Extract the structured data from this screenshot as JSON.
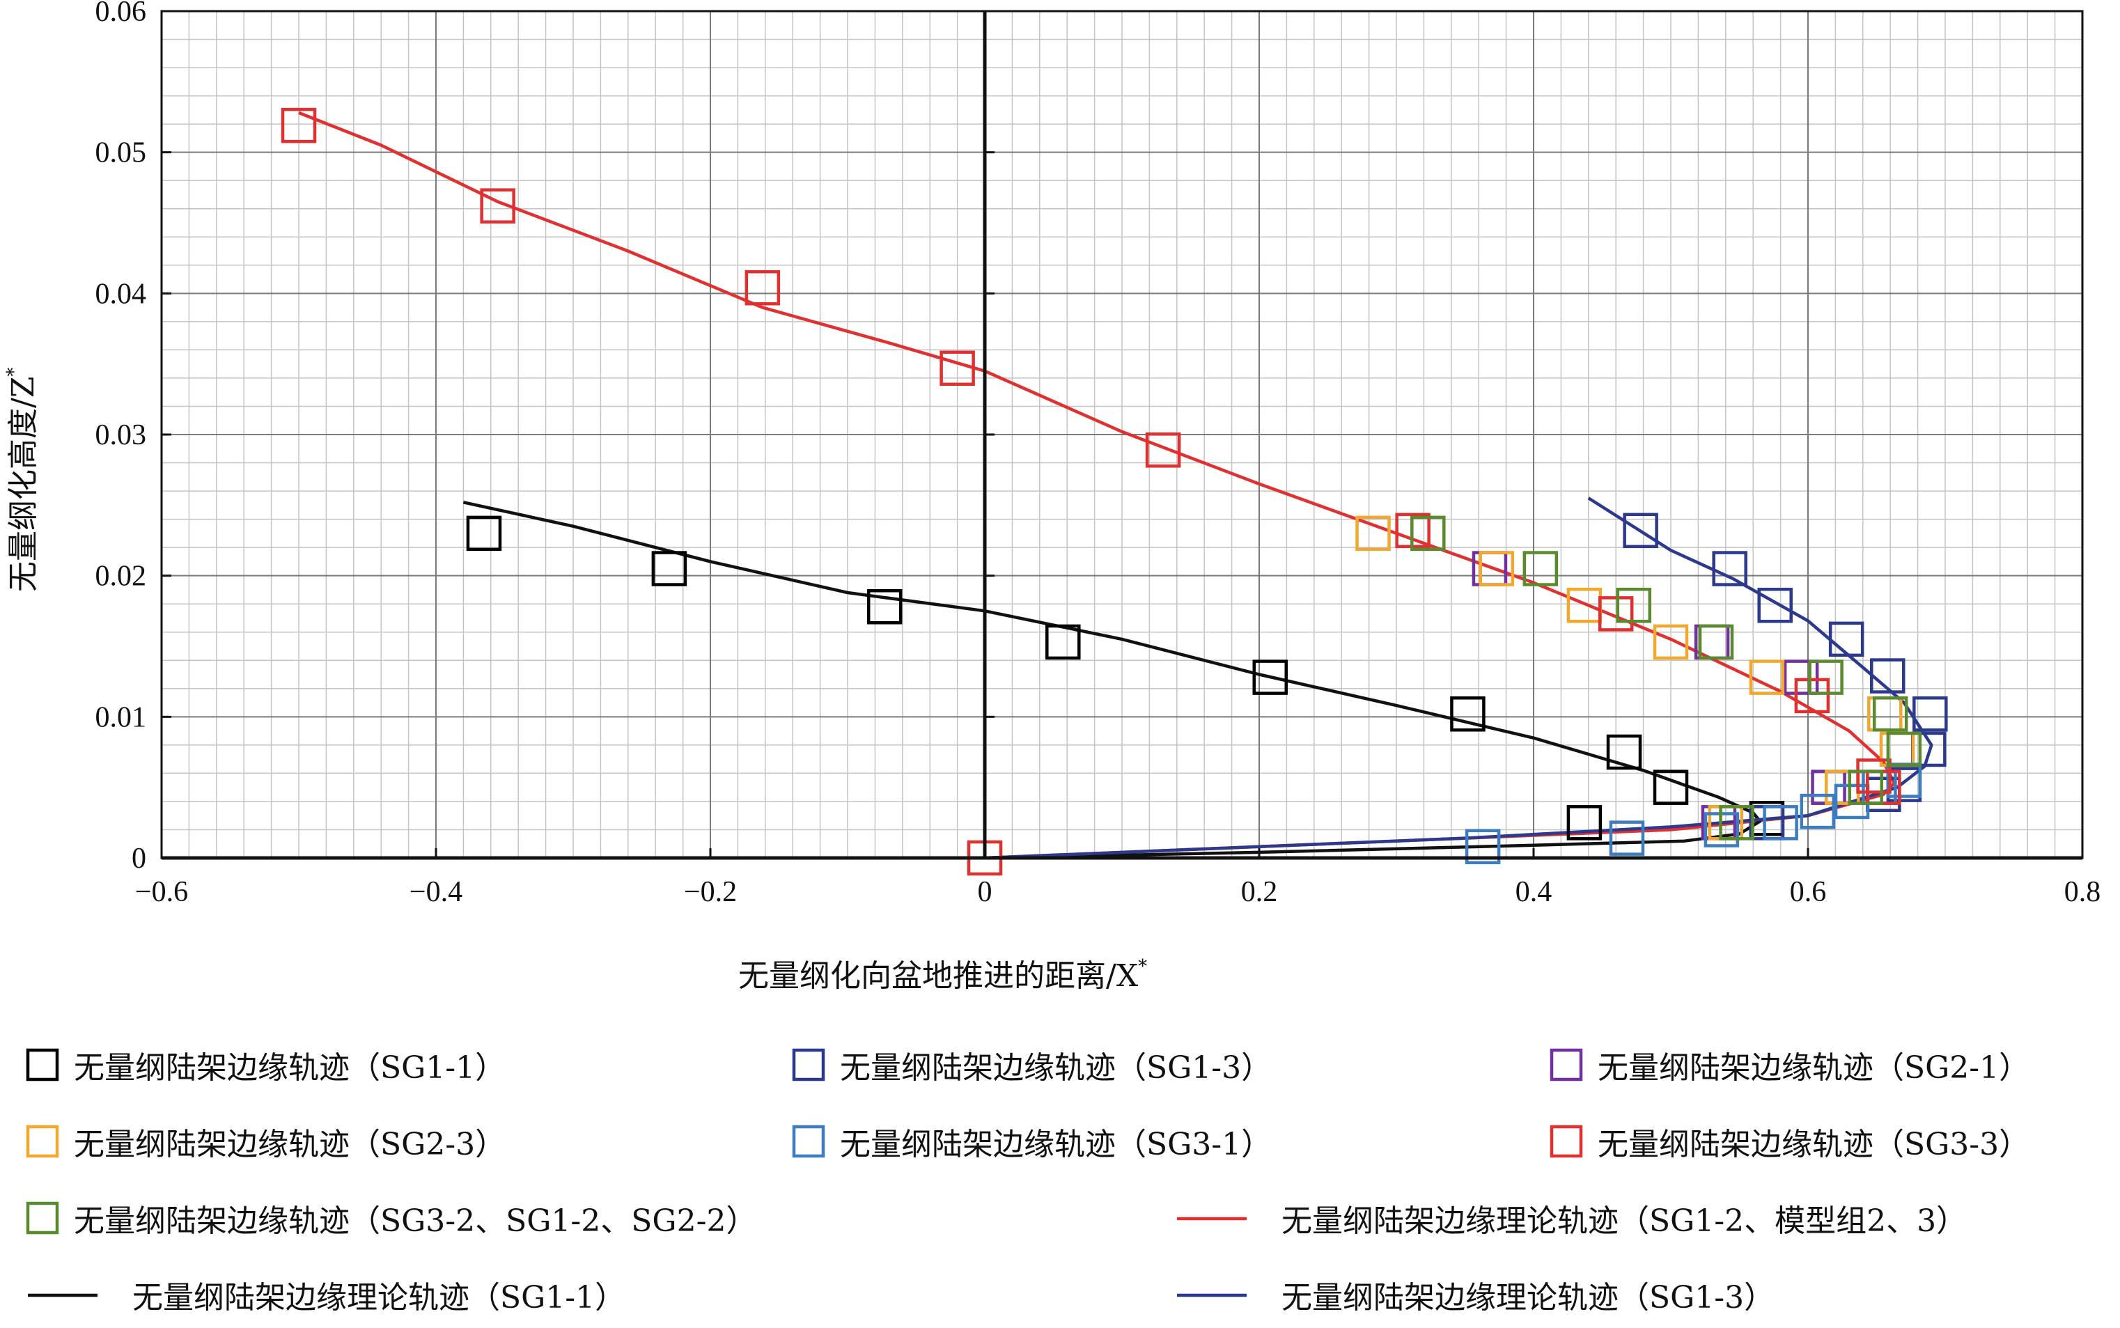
{
  "chart_data": {
    "type": "scatter",
    "xlabel": "无量纲化向盆地推进的距离/X",
    "xlabel_sup": "*",
    "ylabel": "无量纲化高度/Z",
    "ylabel_sup": "*",
    "xlim": [
      -0.6,
      0.8
    ],
    "ylim": [
      0,
      0.06
    ],
    "x_major_ticks": [
      -0.6,
      -0.4,
      -0.2,
      0,
      0.2,
      0.4,
      0.6,
      0.8
    ],
    "x_tick_labels": [
      "−0.6",
      "−0.4",
      "−0.2",
      "0",
      "0.2",
      "0.4",
      "0.6",
      "0.8"
    ],
    "y_major_ticks": [
      0,
      0.01,
      0.02,
      0.03,
      0.04,
      0.05,
      0.06
    ],
    "y_tick_labels": [
      "0",
      "0.01",
      "0.02",
      "0.03",
      "0.04",
      "0.05",
      "0.06"
    ],
    "x_minor_step": 0.02,
    "y_minor_step": 0.002,
    "grid": true,
    "legend_position": "bottom",
    "series": [
      {
        "name": "无量纲陆架边缘轨迹（SG1-1）",
        "kind": "marker",
        "color": "#000000",
        "points": [
          [
            -0.365,
            0.023
          ],
          [
            -0.23,
            0.0205
          ],
          [
            -0.073,
            0.0178
          ],
          [
            0.057,
            0.0153
          ],
          [
            0.208,
            0.0128
          ],
          [
            0.352,
            0.0102
          ],
          [
            0.466,
            0.0075
          ],
          [
            0.5,
            0.005
          ],
          [
            0.437,
            0.0025
          ],
          [
            0.57,
            0.0028
          ]
        ]
      },
      {
        "name": "无量纲陆架边缘轨迹（SG1-3）",
        "kind": "marker",
        "color": "#2b3a8c",
        "points": [
          [
            0.478,
            0.0232
          ],
          [
            0.543,
            0.0205
          ],
          [
            0.576,
            0.0179
          ],
          [
            0.628,
            0.0155
          ],
          [
            0.658,
            0.0129
          ],
          [
            0.689,
            0.0102
          ],
          [
            0.688,
            0.0077
          ],
          [
            0.67,
            0.0052
          ],
          [
            0.655,
            0.0045
          ],
          [
            0.57,
            0.0025
          ]
        ]
      },
      {
        "name": "无量纲陆架边缘轨迹（SG2-1）",
        "kind": "marker",
        "color": "#7030a0",
        "points": [
          [
            0.368,
            0.0205
          ],
          [
            0.53,
            0.0153
          ],
          [
            0.595,
            0.0128
          ],
          [
            0.615,
            0.005
          ],
          [
            0.535,
            0.0025
          ]
        ]
      },
      {
        "name": "无量纲陆架边缘轨迹（SG2-3）",
        "kind": "marker",
        "color": "#f0a830",
        "points": [
          [
            0.283,
            0.023
          ],
          [
            0.373,
            0.0205
          ],
          [
            0.437,
            0.0179
          ],
          [
            0.5,
            0.0153
          ],
          [
            0.57,
            0.0128
          ],
          [
            0.656,
            0.0102
          ],
          [
            0.665,
            0.0077
          ],
          [
            0.625,
            0.005
          ],
          [
            0.54,
            0.0025
          ]
        ]
      },
      {
        "name": "无量纲陆架边缘轨迹（SG3-1）",
        "kind": "marker",
        "color": "#3d7cc0",
        "points": [
          [
            0.363,
            0.0008
          ],
          [
            0.468,
            0.0014
          ],
          [
            0.537,
            0.002
          ],
          [
            0.58,
            0.0025
          ],
          [
            0.607,
            0.0033
          ],
          [
            0.632,
            0.004
          ],
          [
            0.652,
            0.005
          ],
          [
            0.67,
            0.0055
          ]
        ]
      },
      {
        "name": "无量纲陆架边缘轨迹（SG3-3）",
        "kind": "marker",
        "color": "#e03030",
        "points": [
          [
            -0.5,
            0.0519
          ],
          [
            -0.355,
            0.0462
          ],
          [
            -0.162,
            0.0404
          ],
          [
            -0.02,
            0.0347
          ],
          [
            0.13,
            0.0289
          ],
          [
            0.312,
            0.0232
          ],
          [
            0.46,
            0.0173
          ],
          [
            0.603,
            0.0115
          ],
          [
            0.648,
            0.0058
          ],
          [
            0.655,
            0.005
          ],
          [
            0.0,
            0.0
          ]
        ]
      },
      {
        "name": "无量纲陆架边缘轨迹（SG3-2、SG1-2、SG2-2）",
        "kind": "marker",
        "color": "#5a8a2e",
        "points": [
          [
            0.323,
            0.023
          ],
          [
            0.405,
            0.0205
          ],
          [
            0.473,
            0.0179
          ],
          [
            0.533,
            0.0153
          ],
          [
            0.613,
            0.0128
          ],
          [
            0.66,
            0.0102
          ],
          [
            0.67,
            0.0077
          ],
          [
            0.642,
            0.005
          ],
          [
            0.548,
            0.0025
          ]
        ]
      },
      {
        "name": "无量纲陆架边缘理论轨迹（SG1-2、模型组2、3）",
        "kind": "line",
        "color": "#e03030",
        "points": [
          [
            -0.5,
            0.0528
          ],
          [
            -0.44,
            0.0505
          ],
          [
            -0.355,
            0.0465
          ],
          [
            -0.26,
            0.043
          ],
          [
            -0.162,
            0.039
          ],
          [
            -0.07,
            0.0365
          ],
          [
            0.0,
            0.0345
          ],
          [
            0.1,
            0.0302
          ],
          [
            0.2,
            0.0265
          ],
          [
            0.3,
            0.023
          ],
          [
            0.4,
            0.0195
          ],
          [
            0.5,
            0.0155
          ],
          [
            0.58,
            0.0118
          ],
          [
            0.63,
            0.009
          ],
          [
            0.655,
            0.0068
          ],
          [
            0.663,
            0.0053
          ],
          [
            0.655,
            0.0045
          ],
          [
            0.6,
            0.003
          ],
          [
            0.5,
            0.002
          ],
          [
            0.3,
            0.0012
          ],
          [
            0.15,
            0.0006
          ],
          [
            0.0,
            0.0
          ]
        ]
      },
      {
        "name": "无量纲陆架边缘理论轨迹（SG1-1）",
        "kind": "line",
        "color": "#111111",
        "points": [
          [
            -0.38,
            0.0252
          ],
          [
            -0.3,
            0.0235
          ],
          [
            -0.2,
            0.021
          ],
          [
            -0.1,
            0.0188
          ],
          [
            0.0,
            0.0175
          ],
          [
            0.1,
            0.0155
          ],
          [
            0.2,
            0.013
          ],
          [
            0.3,
            0.0108
          ],
          [
            0.4,
            0.0085
          ],
          [
            0.48,
            0.0062
          ],
          [
            0.535,
            0.0043
          ],
          [
            0.56,
            0.0032
          ],
          [
            0.565,
            0.0026
          ],
          [
            0.55,
            0.0017
          ],
          [
            0.51,
            0.0012
          ],
          [
            0.4,
            0.0009
          ],
          [
            0.2,
            0.0004
          ],
          [
            0.0,
            0.0
          ]
        ]
      },
      {
        "name": "无量纲陆架边缘理论轨迹（SG1-3）",
        "kind": "line",
        "color": "#2b3a8c",
        "points": [
          [
            0.44,
            0.0255
          ],
          [
            0.5,
            0.0218
          ],
          [
            0.545,
            0.0198
          ],
          [
            0.6,
            0.0168
          ],
          [
            0.64,
            0.0135
          ],
          [
            0.67,
            0.011
          ],
          [
            0.69,
            0.008
          ],
          [
            0.685,
            0.0065
          ],
          [
            0.665,
            0.005
          ],
          [
            0.6,
            0.003
          ],
          [
            0.5,
            0.0022
          ],
          [
            0.35,
            0.0014
          ],
          [
            0.2,
            0.0008
          ],
          [
            0.0,
            0.0
          ]
        ]
      }
    ]
  }
}
